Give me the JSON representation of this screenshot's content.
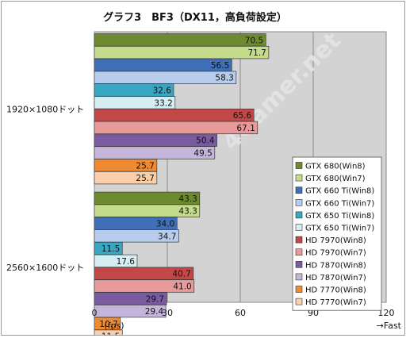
{
  "chart_data": {
    "type": "bar",
    "orientation": "horizontal",
    "title": "グラフ3　BF3（DX11，高負荷設定）",
    "categories": [
      "1920×1080ドット",
      "2560×1600ドット"
    ],
    "xlim": [
      0,
      120
    ],
    "xticks": [
      "0",
      "30",
      "60",
      "90",
      "120"
    ],
    "xlabel": "(fps)",
    "xlabel_right": "→Fast",
    "grid": true,
    "legend_position": "bottom-right",
    "series": [
      {
        "name": "GTX 680(Win8)",
        "color": "#6e8a2e",
        "values": [
          70.5,
          43.3
        ]
      },
      {
        "name": "GTX 680(Win7)",
        "color": "#c3db8a",
        "values": [
          71.7,
          43.3
        ]
      },
      {
        "name": "GTX 660 Ti(Win8)",
        "color": "#3f6fb7",
        "values": [
          56.5,
          34.0
        ]
      },
      {
        "name": "GTX 660 Ti(Win7)",
        "color": "#b8cdee",
        "values": [
          58.3,
          34.7
        ]
      },
      {
        "name": "GTX 650 Ti(Win8)",
        "color": "#39a7c2",
        "values": [
          32.6,
          11.5
        ]
      },
      {
        "name": "GTX 650 Ti(Win7)",
        "color": "#d5eef4",
        "values": [
          33.2,
          17.6
        ]
      },
      {
        "name": "HD 7970(Win8)",
        "color": "#c44747",
        "values": [
          65.6,
          40.7
        ]
      },
      {
        "name": "HD 7970(Win7)",
        "color": "#e89a9a",
        "values": [
          67.1,
          41.0
        ]
      },
      {
        "name": "HD 7870(Win8)",
        "color": "#7a5aa0",
        "values": [
          50.4,
          29.7
        ]
      },
      {
        "name": "HD 7870(Win7)",
        "color": "#c6b5db",
        "values": [
          49.5,
          29.4
        ]
      },
      {
        "name": "HD 7770(Win8)",
        "color": "#f08a30",
        "values": [
          25.7,
          10.7
        ]
      },
      {
        "name": "HD 7770(Win7)",
        "color": "#fbcfa9",
        "values": [
          25.7,
          11.5
        ]
      }
    ],
    "watermark": "4Gamer.net"
  }
}
